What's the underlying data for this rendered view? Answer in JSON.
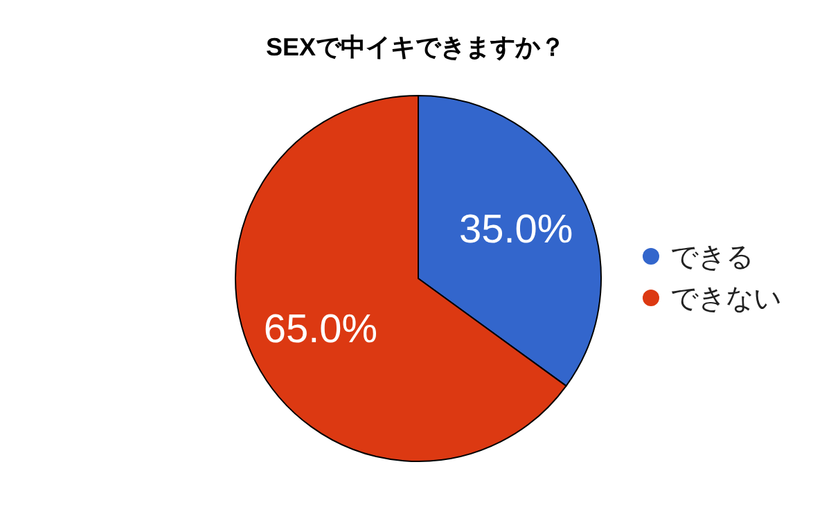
{
  "chart_data": {
    "type": "pie",
    "title": "SEXで中イキできますか？",
    "categories": [
      "できる",
      "できない"
    ],
    "values": [
      35,
      65
    ],
    "colors": [
      "#3366cc",
      "#dc3912"
    ],
    "value_labels": [
      "35.0%",
      "65.0%"
    ],
    "legend": "right"
  }
}
